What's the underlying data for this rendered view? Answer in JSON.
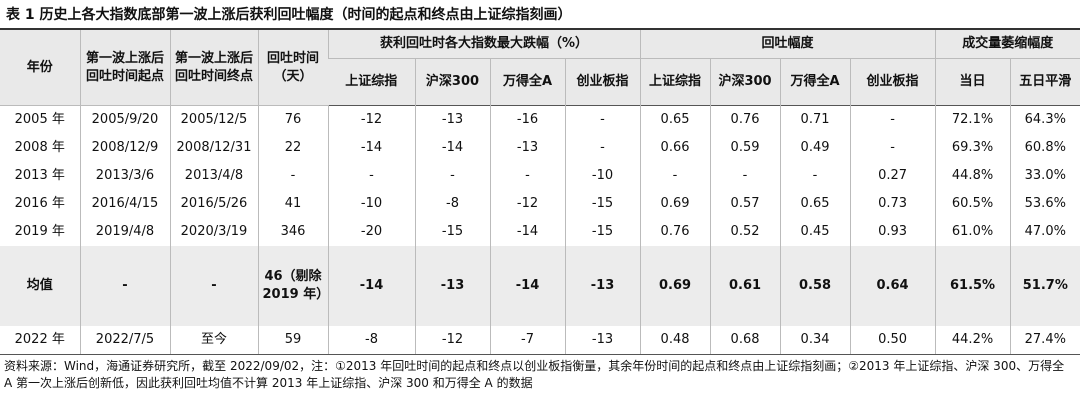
{
  "title": "表 1  历史上各大指数底部第一波上涨后获利回吐幅度（时间的起点和终点由上证综指刻画）",
  "table": {
    "header_top": [
      "年份",
      "第一波上涨后回吐时间起点",
      "第一波上涨后回吐时间终点",
      "回吐时间（天）",
      "获利回吐时各大指数最大跌幅（%）",
      "回吐幅度",
      "成交量萎缩幅度"
    ],
    "header_sub": [
      "上证综指",
      "沪深300",
      "万得全A",
      "创业板指",
      "上证综指",
      "沪深300",
      "万得全A",
      "创业板指",
      "当日",
      "五日平滑"
    ],
    "rows": [
      [
        "2005 年",
        "2005/9/20",
        "2005/12/5",
        "76",
        "-12",
        "-13",
        "-16",
        "-",
        "0.65",
        "0.76",
        "0.71",
        "-",
        "72.1%",
        "64.3%"
      ],
      [
        "2008 年",
        "2008/12/9",
        "2008/12/31",
        "22",
        "-14",
        "-14",
        "-13",
        "-",
        "0.66",
        "0.59",
        "0.49",
        "-",
        "69.3%",
        "60.8%"
      ],
      [
        "2013 年",
        "2013/3/6",
        "2013/4/8",
        "-",
        "-",
        "-",
        "-",
        "-10",
        "-",
        "-",
        "-",
        "0.27",
        "44.8%",
        "33.0%"
      ],
      [
        "2016 年",
        "2016/4/15",
        "2016/5/26",
        "41",
        "-10",
        "-8",
        "-12",
        "-15",
        "0.69",
        "0.57",
        "0.65",
        "0.73",
        "60.5%",
        "53.6%"
      ],
      [
        "2019 年",
        "2019/4/8",
        "2020/3/19",
        "346",
        "-20",
        "-15",
        "-14",
        "-15",
        "0.76",
        "0.52",
        "0.45",
        "0.93",
        "61.0%",
        "47.0%"
      ],
      [
        "均值",
        "-",
        "-",
        "46（剔除 2019 年）",
        "-14",
        "-13",
        "-14",
        "-13",
        "0.69",
        "0.61",
        "0.58",
        "0.64",
        "61.5%",
        "51.7%"
      ],
      [
        "2022 年",
        "2022/7/5",
        "至今",
        "59",
        "-8",
        "-12",
        "-7",
        "-13",
        "0.48",
        "0.68",
        "0.34",
        "0.50",
        "44.2%",
        "27.4%"
      ]
    ]
  },
  "note": "资料来源：Wind，海通证券研究所，截至 2022/09/02，注：①2013 年回吐时间的起点和终点以创业板指衡量，其余年份时间的起点和终点由上证综指刻画；②2013 年上证综指、沪深 300、万得全 A 第一次上涨后创新低，因此获利回吐均值不计算 2013 年上证综指、沪深 300 和万得全 A 的数据"
}
